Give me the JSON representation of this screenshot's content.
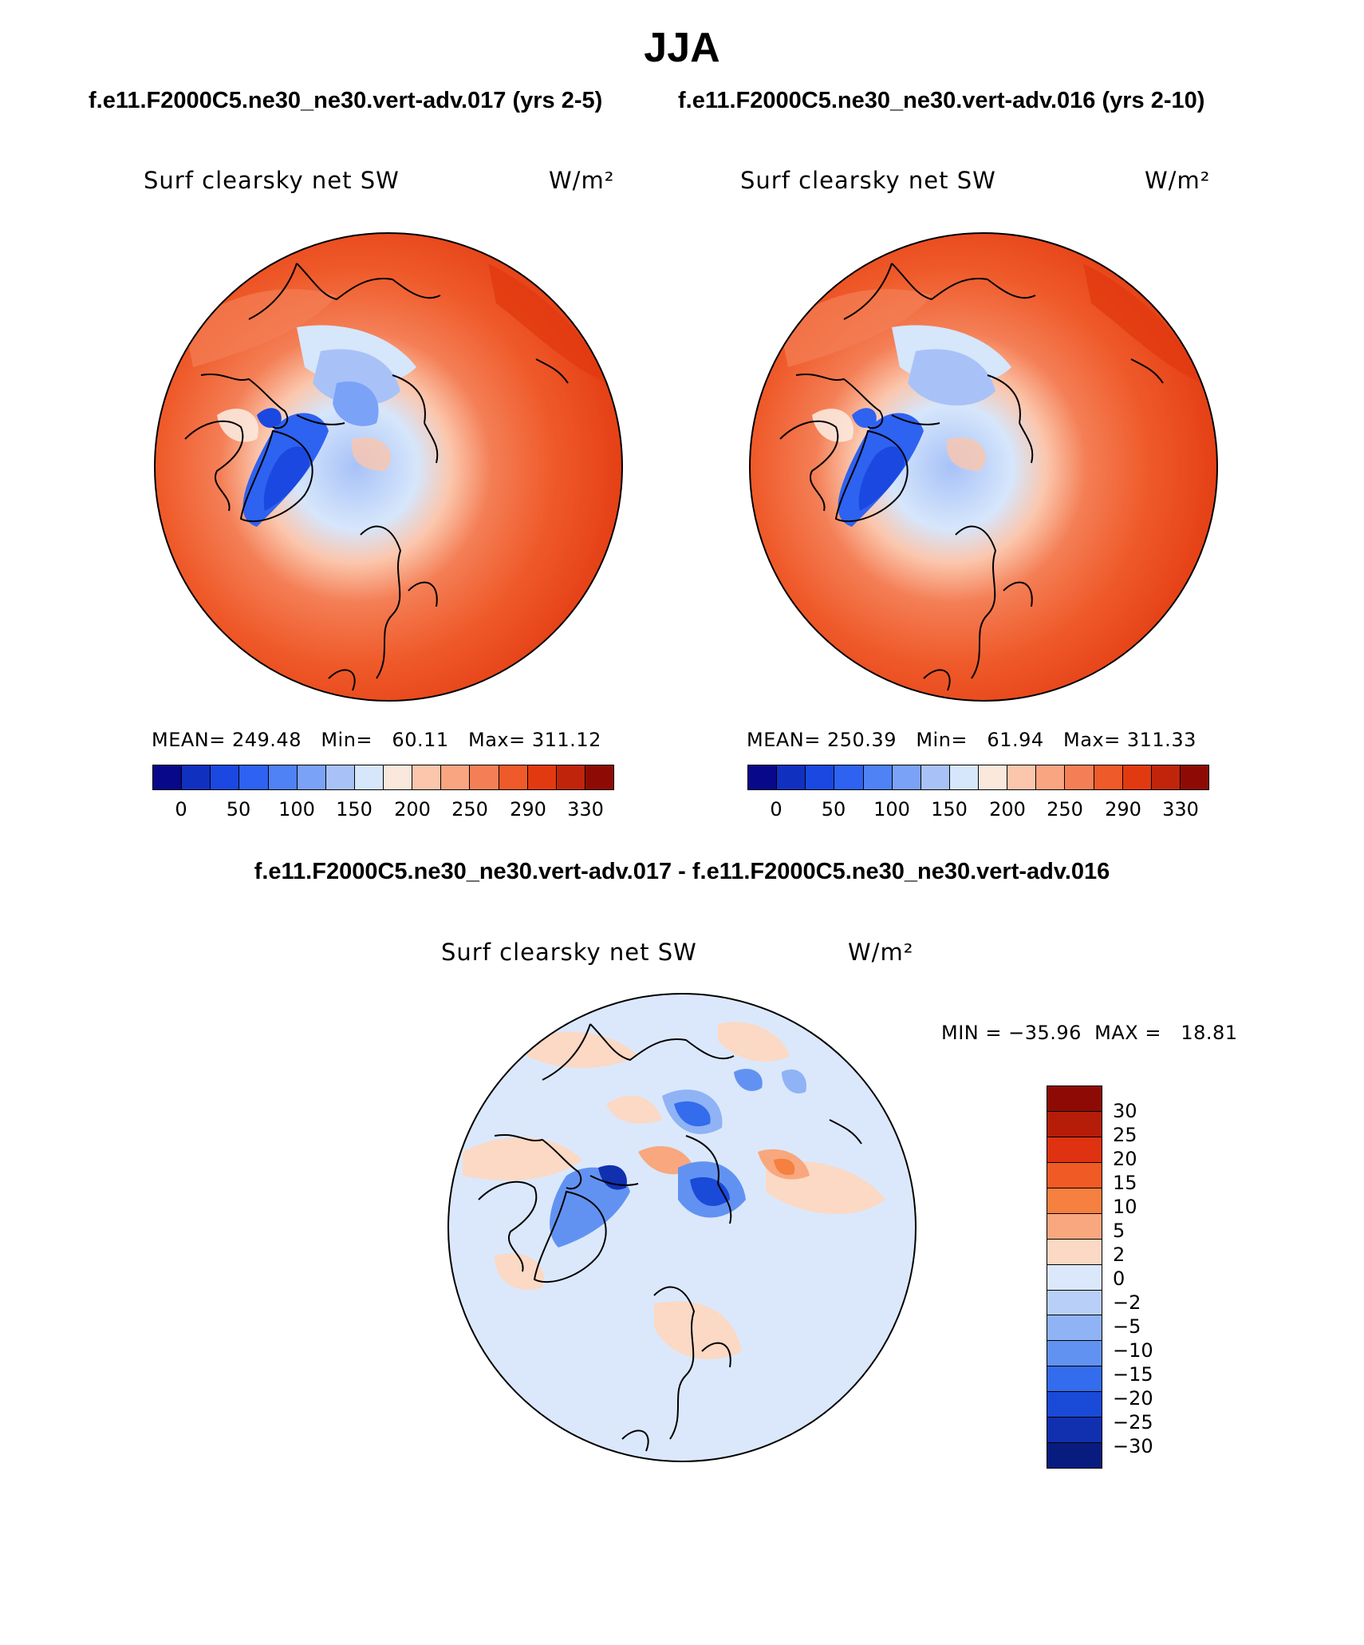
{
  "title": "JJA",
  "run_titles": {
    "left": "f.e11.F2000C5.ne30_ne30.vert-adv.017 (yrs 2-5)",
    "right": "f.e11.F2000C5.ne30_ne30.vert-adv.016 (yrs 2-10)"
  },
  "panels": [
    {
      "variable": "Surf clearsky net SW",
      "units": "W/m²",
      "stats": "MEAN= 249.48   Min=   60.11   Max= 311.12"
    },
    {
      "variable": "Surf clearsky net SW",
      "units": "W/m²",
      "stats": "MEAN= 250.39   Min=   61.94   Max= 311.33"
    }
  ],
  "abs_colorbar": {
    "colors": [
      "#08088a",
      "#1030c0",
      "#1a48e0",
      "#2e62f0",
      "#4f82f5",
      "#7aa2f7",
      "#a8c2f8",
      "#d6e6fb",
      "#fbe8dc",
      "#fbc6ac",
      "#f9a582",
      "#f47f56",
      "#ef5a2a",
      "#e23a10",
      "#c0250c",
      "#8e0b05"
    ],
    "labels": [
      "0",
      "50",
      "100",
      "150",
      "200",
      "250",
      "290",
      "330"
    ]
  },
  "diff": {
    "title": "f.e11.F2000C5.ne30_ne30.vert-adv.017 - f.e11.F2000C5.ne30_ne30.vert-adv.016",
    "variable": "Surf clearsky net SW",
    "units": "W/m²",
    "minmax": "MIN = −35.96  MAX =   18.81",
    "colorbar": {
      "colors": [
        "#8e0b05",
        "#b51d08",
        "#de3210",
        "#f05a24",
        "#f5803f",
        "#f8a77e",
        "#fbd9c4",
        "#dbe8fb",
        "#b8d0f8",
        "#8fb3f4",
        "#6292f1",
        "#336cec",
        "#1a4ad8",
        "#1030b0",
        "#081c80"
      ],
      "labels": [
        "30",
        "25",
        "20",
        "15",
        "10",
        "5",
        "2",
        "0",
        "−2",
        "−5",
        "−10",
        "−15",
        "−20",
        "−25",
        "−30"
      ]
    }
  }
}
